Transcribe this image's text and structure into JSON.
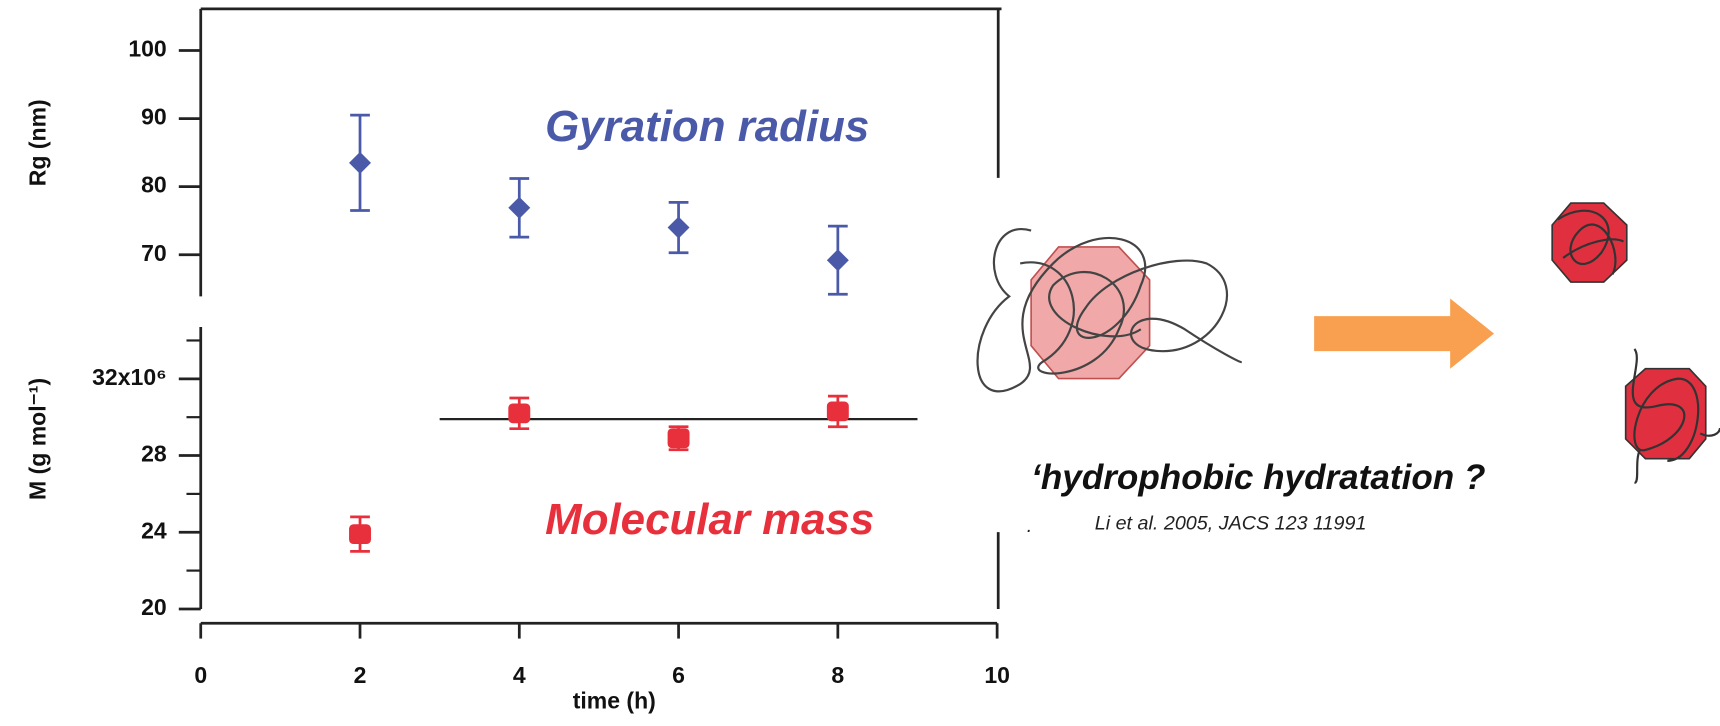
{
  "chart_data": [
    {
      "type": "scatter",
      "ylabel": "Rg (nm)",
      "annotation": "Gyration radius",
      "x": [
        2,
        4,
        6,
        8
      ],
      "xlim": [
        0,
        10
      ],
      "ylim": [
        63.9,
        106.1
      ],
      "yticks": [
        70,
        80,
        90,
        100
      ],
      "series": [
        {
          "color": "#4a5aa8",
          "marker": "diamond",
          "values": [
            83.5,
            76.9,
            74.0,
            69.2
          ],
          "errors": [
            7.0,
            4.3,
            3.7,
            5.0
          ]
        }
      ]
    },
    {
      "type": "scatter",
      "ylabel": "M (g mol⁻¹)",
      "annotation": "Molecular mass",
      "xlabel": "time (h)",
      "x": [
        2,
        4,
        6,
        8
      ],
      "xlim": [
        0,
        10
      ],
      "xticks": [
        0,
        2,
        4,
        6,
        8,
        10
      ],
      "ylim": [
        20,
        34.7
      ],
      "yticks": [
        20,
        24,
        28,
        {
          "value": 32,
          "label": "32x10⁶"
        }
      ],
      "yminor": [
        22,
        26,
        30,
        34
      ],
      "hline": {
        "y": 29.9,
        "x": [
          3,
          9
        ]
      },
      "series": [
        {
          "color": "#e8303c",
          "marker": "square",
          "values": [
            23.9,
            30.2,
            28.9,
            30.3
          ],
          "errors": [
            0.9,
            0.8,
            0.6,
            0.8
          ]
        }
      ]
    }
  ],
  "figure": {
    "caption": "‘hydrophobic hydratation ?",
    "marker": ".",
    "reference": "Li et al. 2005, JACS 123 11991"
  }
}
